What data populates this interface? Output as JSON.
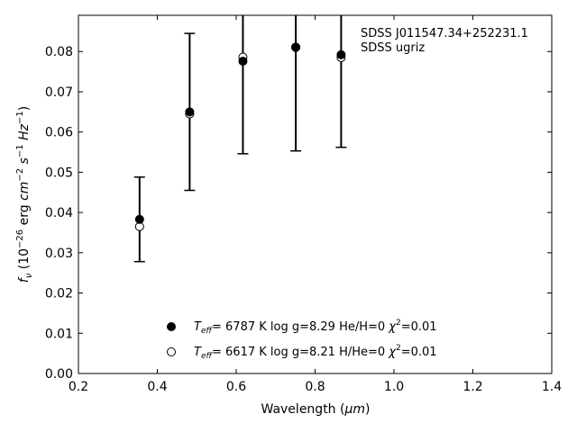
{
  "chart_data": {
    "type": "scatter",
    "xlabel_main": "Wavelength (",
    "xlabel_unit": "μm",
    "xlabel_close": ")",
    "ylabel_prefix": "f",
    "ylabel_sub": "ν",
    "ylabel_open": " (10",
    "ylabel_exp1": "−26",
    "ylabel_mid1": " erg ",
    "ylabel_cm": "cm",
    "ylabel_exp2": "−2",
    "ylabel_s": "s",
    "ylabel_exp3": "−1",
    "ylabel_hz": "Hz",
    "ylabel_exp4": "−1",
    "ylabel_close": ")",
    "xlim": [
      0.2,
      1.4
    ],
    "ylim": [
      0.0,
      0.089
    ],
    "xticks": [
      "0.2",
      "0.4",
      "0.6",
      "0.8",
      "1.0",
      "1.2",
      "1.4"
    ],
    "yticks": [
      "0.00",
      "0.01",
      "0.02",
      "0.03",
      "0.04",
      "0.05",
      "0.06",
      "0.07",
      "0.08"
    ],
    "annotation": [
      "SDSS J011547.34+252231.1",
      "SDSS ugriz"
    ],
    "observed": {
      "x": [
        0.355,
        0.482,
        0.617,
        0.751,
        0.866
      ],
      "y": [
        0.0383,
        0.065,
        0.0776,
        0.0811,
        0.0792
      ],
      "err": [
        0.0105,
        0.0195,
        0.023,
        0.0258,
        0.023
      ]
    },
    "series": [
      {
        "marker": "filled",
        "x": [
          0.355,
          0.482,
          0.617,
          0.751,
          0.866
        ],
        "y": [
          0.0383,
          0.065,
          0.0776,
          0.0811,
          0.0792
        ],
        "legend_teff_sym": "T",
        "legend_teff_sub": "eff",
        "legend_teff": "=  6787 K  log g=8.29  He/H=0  ",
        "legend_chi": "χ",
        "legend_chi_exp": "2",
        "legend_chi_val": "=0.01"
      },
      {
        "marker": "open",
        "x": [
          0.355,
          0.482,
          0.617,
          0.751,
          0.866
        ],
        "y": [
          0.0365,
          0.0645,
          0.0786,
          0.081,
          0.0785
        ],
        "legend_teff_sym": "T",
        "legend_teff_sub": "eff",
        "legend_teff": "=  6617 K  log g=8.21  H/He=0  ",
        "legend_chi": "χ",
        "legend_chi_exp": "2",
        "legend_chi_val": "=0.01"
      }
    ],
    "legend_position": "lower-center"
  }
}
